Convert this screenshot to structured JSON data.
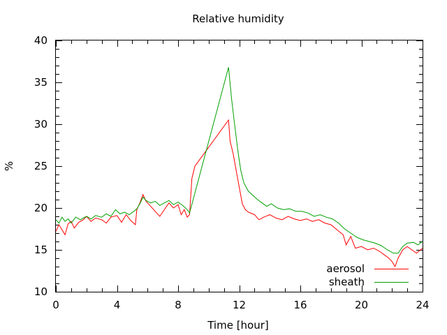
{
  "chart_data": {
    "type": "line",
    "title": "Relative humidity",
    "xlabel": "Time [hour]",
    "ylabel": "%",
    "xlim": [
      0,
      24
    ],
    "ylim": [
      10,
      40
    ],
    "xticks": [
      0,
      4,
      8,
      12,
      16,
      20,
      24
    ],
    "yticks": [
      10,
      15,
      20,
      25,
      30,
      35,
      40
    ],
    "grid": false,
    "legend_position": "bottom-right",
    "series": [
      {
        "name": "aerosol",
        "color": "#ff0000",
        "points": [
          [
            0.0,
            17.2
          ],
          [
            0.2,
            18.0
          ],
          [
            0.4,
            17.4
          ],
          [
            0.6,
            16.8
          ],
          [
            0.8,
            18.1
          ],
          [
            1.0,
            18.4
          ],
          [
            1.2,
            17.6
          ],
          [
            1.5,
            18.3
          ],
          [
            1.8,
            18.6
          ],
          [
            2.0,
            19.0
          ],
          [
            2.3,
            18.4
          ],
          [
            2.6,
            18.8
          ],
          [
            3.0,
            18.6
          ],
          [
            3.3,
            18.2
          ],
          [
            3.6,
            18.9
          ],
          [
            4.0,
            19.1
          ],
          [
            4.3,
            18.3
          ],
          [
            4.6,
            19.2
          ],
          [
            4.9,
            18.5
          ],
          [
            5.2,
            18.0
          ],
          [
            5.3,
            19.8
          ],
          [
            5.5,
            20.6
          ],
          [
            5.7,
            21.6
          ],
          [
            5.9,
            20.8
          ],
          [
            6.2,
            20.2
          ],
          [
            6.5,
            19.6
          ],
          [
            6.8,
            19.0
          ],
          [
            7.1,
            19.8
          ],
          [
            7.4,
            20.6
          ],
          [
            7.7,
            20.0
          ],
          [
            8.0,
            20.4
          ],
          [
            8.2,
            19.2
          ],
          [
            8.4,
            19.8
          ],
          [
            8.6,
            18.9
          ],
          [
            8.75,
            19.2
          ],
          [
            8.9,
            23.5
          ],
          [
            9.1,
            25.0
          ],
          [
            11.3,
            30.5
          ],
          [
            11.4,
            28.0
          ],
          [
            11.6,
            26.5
          ],
          [
            11.8,
            24.5
          ],
          [
            12.0,
            22.5
          ],
          [
            12.2,
            20.5
          ],
          [
            12.4,
            19.8
          ],
          [
            12.6,
            19.5
          ],
          [
            13.0,
            19.2
          ],
          [
            13.3,
            18.6
          ],
          [
            13.6,
            18.9
          ],
          [
            14.0,
            19.2
          ],
          [
            14.4,
            18.8
          ],
          [
            14.8,
            18.6
          ],
          [
            15.2,
            19.0
          ],
          [
            15.6,
            18.7
          ],
          [
            16.0,
            18.5
          ],
          [
            16.4,
            18.7
          ],
          [
            16.8,
            18.4
          ],
          [
            17.2,
            18.6
          ],
          [
            17.6,
            18.2
          ],
          [
            18.0,
            18.0
          ],
          [
            18.4,
            17.4
          ],
          [
            18.8,
            16.8
          ],
          [
            19.0,
            15.6
          ],
          [
            19.3,
            16.6
          ],
          [
            19.6,
            15.2
          ],
          [
            20.0,
            15.4
          ],
          [
            20.4,
            15.0
          ],
          [
            20.8,
            15.2
          ],
          [
            21.2,
            14.8
          ],
          [
            21.5,
            14.4
          ],
          [
            21.8,
            14.0
          ],
          [
            22.0,
            13.6
          ],
          [
            22.2,
            13.0
          ],
          [
            22.4,
            14.0
          ],
          [
            22.7,
            15.0
          ],
          [
            23.0,
            15.4
          ],
          [
            23.3,
            15.0
          ],
          [
            23.6,
            14.6
          ],
          [
            24.0,
            15.2
          ]
        ]
      },
      {
        "name": "sheath",
        "color": "#00a000",
        "points": [
          [
            0.0,
            18.6
          ],
          [
            0.2,
            18.2
          ],
          [
            0.4,
            18.9
          ],
          [
            0.6,
            18.4
          ],
          [
            0.8,
            18.7
          ],
          [
            1.0,
            18.2
          ],
          [
            1.3,
            18.9
          ],
          [
            1.6,
            18.6
          ],
          [
            2.0,
            19.0
          ],
          [
            2.3,
            18.7
          ],
          [
            2.6,
            19.1
          ],
          [
            3.0,
            18.9
          ],
          [
            3.3,
            19.3
          ],
          [
            3.6,
            19.0
          ],
          [
            3.9,
            19.8
          ],
          [
            4.2,
            19.3
          ],
          [
            4.5,
            19.5
          ],
          [
            4.8,
            19.2
          ],
          [
            5.1,
            19.6
          ],
          [
            5.3,
            19.9
          ],
          [
            5.5,
            20.5
          ],
          [
            5.7,
            21.3
          ],
          [
            5.9,
            20.9
          ],
          [
            6.2,
            20.6
          ],
          [
            6.5,
            20.8
          ],
          [
            6.8,
            20.3
          ],
          [
            7.1,
            20.6
          ],
          [
            7.4,
            20.9
          ],
          [
            7.7,
            20.4
          ],
          [
            8.0,
            20.7
          ],
          [
            8.3,
            20.3
          ],
          [
            8.6,
            19.8
          ],
          [
            8.75,
            19.4
          ],
          [
            11.3,
            36.8
          ],
          [
            11.5,
            33.0
          ],
          [
            11.7,
            30.0
          ],
          [
            11.9,
            27.0
          ],
          [
            12.1,
            24.5
          ],
          [
            12.3,
            23.0
          ],
          [
            12.6,
            22.0
          ],
          [
            12.9,
            21.5
          ],
          [
            13.2,
            21.0
          ],
          [
            13.5,
            20.6
          ],
          [
            13.8,
            20.2
          ],
          [
            14.1,
            20.5
          ],
          [
            14.5,
            20.0
          ],
          [
            14.9,
            19.8
          ],
          [
            15.3,
            19.9
          ],
          [
            15.7,
            19.6
          ],
          [
            16.1,
            19.6
          ],
          [
            16.5,
            19.4
          ],
          [
            16.9,
            19.0
          ],
          [
            17.3,
            19.2
          ],
          [
            17.7,
            18.9
          ],
          [
            18.1,
            18.7
          ],
          [
            18.5,
            18.2
          ],
          [
            18.9,
            17.5
          ],
          [
            19.3,
            17.0
          ],
          [
            19.7,
            16.5
          ],
          [
            20.1,
            16.2
          ],
          [
            20.5,
            16.0
          ],
          [
            20.9,
            15.8
          ],
          [
            21.3,
            15.5
          ],
          [
            21.7,
            15.0
          ],
          [
            22.1,
            14.6
          ],
          [
            22.4,
            14.6
          ],
          [
            22.7,
            15.4
          ],
          [
            23.0,
            15.8
          ],
          [
            23.4,
            15.9
          ],
          [
            23.7,
            15.6
          ],
          [
            24.0,
            16.0
          ]
        ]
      }
    ]
  }
}
